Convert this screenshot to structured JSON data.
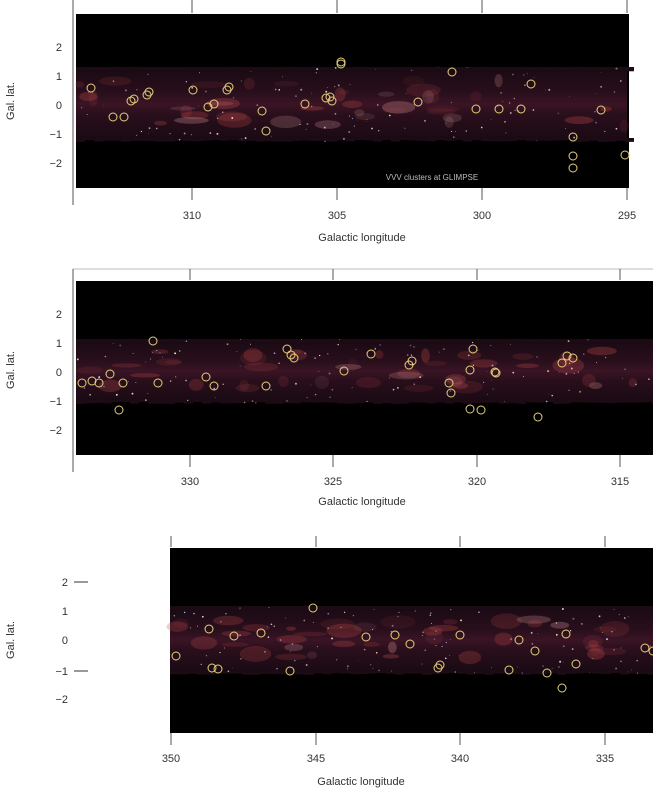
{
  "panels": [
    {
      "ylabel": "Gal. lat.",
      "xlabel": "Galactic longitude",
      "note": "VVV clusters at GLIMPSE",
      "xticks": [
        "310",
        "305",
        "300",
        "295"
      ],
      "yticks": [
        "2",
        "1",
        "0",
        "−1",
        "−2"
      ],
      "lon_range": [
        314.2,
        294.2
      ],
      "lat_range": [
        -2.8,
        3.1
      ]
    },
    {
      "ylabel": "Gal. lat.",
      "xlabel": "Galactic longitude",
      "xticks": [
        "330",
        "325",
        "320",
        "315"
      ],
      "yticks": [
        "2",
        "1",
        "0",
        "−1",
        "−2"
      ],
      "lon_range": [
        334.0,
        314.2
      ],
      "lat_range": [
        -2.8,
        3.1
      ]
    },
    {
      "ylabel": "Gal. lat.",
      "xlabel": "Galactic longitude",
      "xticks": [
        "350",
        "345",
        "340",
        "335"
      ],
      "yticks": [
        "2",
        "1",
        "0",
        "−1",
        "−2"
      ],
      "lon_range": [
        353.3,
        333.2
      ],
      "lat_range": [
        -3.2,
        3.1
      ]
    }
  ],
  "circle_color": "#e6d27a",
  "image_colors": {
    "background": "#000000",
    "band": "#2a0f1c",
    "glow": "#c04a4a"
  }
}
